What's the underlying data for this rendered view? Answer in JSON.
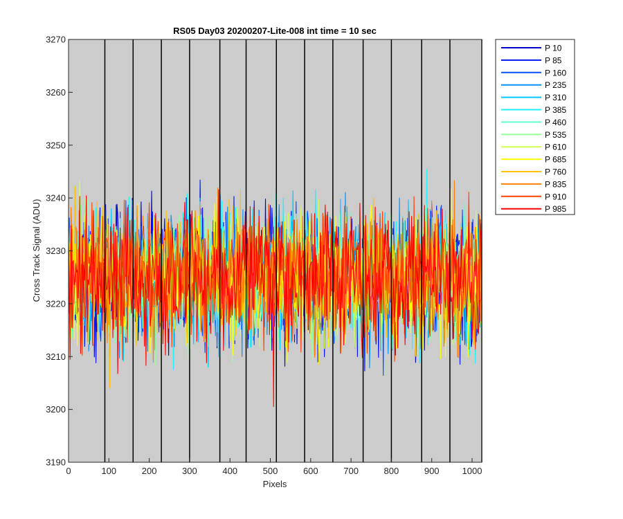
{
  "chart_data": {
    "type": "line",
    "title": "RS05 Day03 20200207-Lite-008 int time = 10 sec",
    "xlabel": "Pixels",
    "ylabel": "Cross Track Signal (ADU)",
    "xlim": [
      0,
      1024
    ],
    "ylim": [
      3190,
      3270
    ],
    "xticks": [
      0,
      100,
      200,
      300,
      400,
      500,
      600,
      700,
      800,
      900,
      1000
    ],
    "xtick_labels": [
      "0",
      "100",
      "200",
      "300",
      "400",
      "500",
      "600",
      "700",
      "800",
      "900",
      "1000"
    ],
    "yticks": [
      3190,
      3200,
      3210,
      3220,
      3230,
      3240,
      3250,
      3260,
      3270
    ],
    "ytick_labels": [
      "3190",
      "3200",
      "3210",
      "3220",
      "3230",
      "3240",
      "3250",
      "3260",
      "3270"
    ],
    "vertical_lines_x": [
      90,
      160,
      230,
      300,
      375,
      440,
      515,
      585,
      655,
      730,
      800,
      875,
      945,
      1024
    ],
    "plot_background": "#cccccc",
    "legend_position": "outside-right-top",
    "series": [
      {
        "name": "P 10",
        "color": "#0000c8",
        "level": 3225,
        "amplitude": 10,
        "seed": 11
      },
      {
        "name": "P 85",
        "color": "#0015f0",
        "level": 3225,
        "amplitude": 10,
        "seed": 23
      },
      {
        "name": "P 160",
        "color": "#0050ff",
        "level": 3225,
        "amplitude": 10,
        "seed": 37
      },
      {
        "name": "P 235",
        "color": "#0090ff",
        "level": 3225,
        "amplitude": 10,
        "seed": 41
      },
      {
        "name": "P 310",
        "color": "#00c8ff",
        "level": 3225,
        "amplitude": 10,
        "seed": 53
      },
      {
        "name": "P 385",
        "color": "#20f0ff",
        "level": 3225,
        "amplitude": 10,
        "seed": 67
      },
      {
        "name": "P 460",
        "color": "#60ffd0",
        "level": 3225,
        "amplitude": 10,
        "seed": 71
      },
      {
        "name": "P 535",
        "color": "#98ff98",
        "level": 3225,
        "amplitude": 10,
        "seed": 83
      },
      {
        "name": "P 610",
        "color": "#d0ff50",
        "level": 3225,
        "amplitude": 10,
        "seed": 97
      },
      {
        "name": "P 685",
        "color": "#ffff00",
        "level": 3225,
        "amplitude": 10,
        "seed": 101
      },
      {
        "name": "P 760",
        "color": "#ffc000",
        "level": 3225,
        "amplitude": 10,
        "seed": 113
      },
      {
        "name": "P 835",
        "color": "#ff8000",
        "level": 3225,
        "amplitude": 10,
        "seed": 127
      },
      {
        "name": "P 910",
        "color": "#ff4000",
        "level": 3225,
        "amplitude": 10,
        "seed": 131
      },
      {
        "name": "P 985",
        "color": "#ff0000",
        "level": 3225,
        "amplitude": 10,
        "seed": 139
      }
    ]
  }
}
